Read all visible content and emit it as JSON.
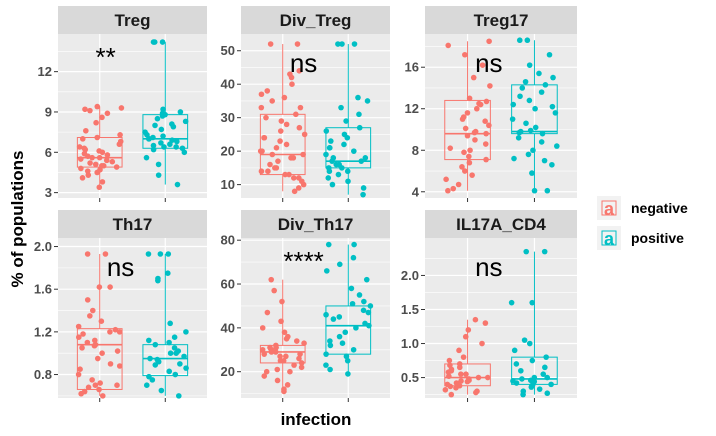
{
  "chart_data": {
    "type": "box",
    "xlabel": "infection",
    "ylabel": "% of populations",
    "legend": {
      "position": "right",
      "entries": [
        {
          "name": "negative",
          "color": "#F8766D"
        },
        {
          "name": "positive",
          "color": "#00BFC4"
        }
      ],
      "key_glyph": "a"
    },
    "groups": [
      "negative",
      "positive"
    ],
    "colors": {
      "negative": "#F8766D",
      "positive": "#00BFC4",
      "panel_bg": "#EBEBEB",
      "strip_bg": "#D9D9D9",
      "grid": "#FFFFFF"
    },
    "grid": true,
    "panels": [
      {
        "title": "Treg",
        "significance": "**",
        "ylim": [
          2.6,
          14.8
        ],
        "ticks": [
          3,
          6,
          9,
          12
        ],
        "boxes": {
          "negative": {
            "min": 3.4,
            "q1": 4.9,
            "median": 5.6,
            "q3": 7.1,
            "max": 9.4
          },
          "positive": {
            "min": 3.6,
            "q1": 6.3,
            "median": 7.0,
            "q3": 8.8,
            "max": 14.2
          }
        },
        "points": {
          "negative": [
            3.4,
            3.8,
            4.1,
            4.3,
            4.5,
            4.7,
            4.8,
            4.9,
            5.0,
            5.1,
            5.2,
            5.3,
            5.4,
            5.5,
            5.6,
            5.7,
            5.8,
            5.9,
            6.0,
            6.1,
            6.2,
            6.4,
            6.6,
            6.8,
            7.0,
            7.1,
            7.3,
            7.6,
            8.2,
            8.6,
            8.9,
            9.1,
            9.2,
            9.3,
            9.4,
            4.6,
            5.0,
            5.6,
            6.3
          ],
          "positive": [
            3.6,
            4.3,
            5.1,
            5.6,
            6.0,
            6.2,
            6.3,
            6.4,
            6.5,
            6.6,
            6.7,
            6.8,
            6.9,
            7.0,
            7.1,
            7.2,
            7.3,
            7.5,
            7.7,
            7.9,
            8.1,
            8.3,
            8.5,
            8.7,
            8.8,
            8.9,
            9.0,
            9.2,
            14.2,
            14.2,
            14.2,
            6.4,
            7.0,
            8.0
          ]
        }
      },
      {
        "title": "Div_Treg",
        "significance": "ns",
        "ylim": [
          6,
          55
        ],
        "ticks": [
          10,
          20,
          30,
          40,
          50
        ],
        "boxes": {
          "negative": {
            "min": 8,
            "q1": 13,
            "median": 19,
            "q3": 31,
            "max": 52
          },
          "positive": {
            "min": 7,
            "q1": 15,
            "median": 17,
            "q3": 27,
            "max": 52
          }
        },
        "points": {
          "negative": [
            8,
            9,
            10,
            11,
            12,
            12,
            13,
            13,
            14,
            15,
            15,
            16,
            17,
            18,
            18,
            19,
            19,
            20,
            21,
            22,
            23,
            24,
            25,
            26,
            27,
            28,
            29,
            30,
            31,
            33,
            35,
            37,
            38,
            40,
            42,
            43,
            44,
            52,
            52,
            14,
            20,
            24,
            33,
            36
          ],
          "positive": [
            7,
            9,
            10,
            11,
            12,
            13,
            14,
            15,
            15,
            16,
            16,
            17,
            17,
            18,
            19,
            20,
            21,
            22,
            23,
            24,
            25,
            26,
            27,
            29,
            31,
            33,
            35,
            36,
            52,
            52,
            52,
            14,
            18,
            21
          ]
        }
      },
      {
        "title": "Treg17",
        "significance": "ns",
        "ylim": [
          3.4,
          19.2
        ],
        "ticks": [
          4,
          8,
          12,
          16
        ],
        "boxes": {
          "negative": {
            "min": 4.1,
            "q1": 7.1,
            "median": 9.6,
            "q3": 12.8,
            "max": 18.5
          },
          "positive": {
            "min": 4.1,
            "q1": 9.6,
            "median": 9.8,
            "q3": 14.3,
            "max": 18.6
          }
        },
        "points": {
          "negative": [
            4.1,
            4.3,
            4.7,
            5.2,
            5.6,
            6.0,
            6.4,
            6.8,
            7.1,
            7.4,
            7.8,
            8.2,
            8.6,
            9.0,
            9.4,
            9.6,
            9.8,
            10.1,
            10.4,
            10.8,
            11.2,
            11.6,
            12.0,
            12.4,
            12.7,
            13.0,
            14.2,
            15.0,
            16.2,
            17.2,
            18.1,
            18.5,
            8.0,
            9.7,
            11.0,
            12.5
          ],
          "positive": [
            4.1,
            4.1,
            5.8,
            6.6,
            7.0,
            7.2,
            7.6,
            8.0,
            8.4,
            8.8,
            9.2,
            9.6,
            9.7,
            9.8,
            10.2,
            10.6,
            11.0,
            11.6,
            12.0,
            12.4,
            12.8,
            13.2,
            13.6,
            14.0,
            14.3,
            14.6,
            15.0,
            15.4,
            16.2,
            17.2,
            18.6,
            18.6,
            9.9,
            12.2
          ]
        }
      },
      {
        "title": "Th17",
        "significance": "ns",
        "ylim": [
          0.58,
          2.08
        ],
        "ticks": [
          0.8,
          1.2,
          1.6,
          2.0
        ],
        "boxes": {
          "negative": {
            "min": 0.6,
            "q1": 0.66,
            "median": 1.08,
            "q3": 1.23,
            "max": 1.93
          },
          "positive": {
            "min": 0.6,
            "q1": 0.79,
            "median": 0.95,
            "q3": 1.08,
            "max": 1.93
          }
        },
        "points": {
          "negative": [
            0.6,
            0.62,
            0.64,
            0.66,
            0.68,
            0.7,
            0.72,
            0.75,
            0.8,
            0.85,
            0.9,
            0.95,
            1.0,
            1.02,
            1.05,
            1.08,
            1.1,
            1.12,
            1.15,
            1.18,
            1.2,
            1.22,
            1.25,
            1.3,
            1.35,
            1.4,
            1.5,
            1.62,
            1.62,
            1.93,
            1.93,
            0.7,
            0.88,
            1.07,
            1.2
          ],
          "positive": [
            0.6,
            0.65,
            0.7,
            0.75,
            0.78,
            0.8,
            0.83,
            0.86,
            0.89,
            0.92,
            0.94,
            0.95,
            0.97,
            1.0,
            1.02,
            1.05,
            1.08,
            1.1,
            1.12,
            1.15,
            1.2,
            1.28,
            1.68,
            1.7,
            1.75,
            1.93,
            1.93,
            1.93,
            0.9,
            1.0
          ]
        }
      },
      {
        "title": "Div_Th17",
        "significance": "****",
        "ylim": [
          8,
          81
        ],
        "ticks": [
          20,
          40,
          60,
          80
        ],
        "boxes": {
          "negative": {
            "min": 11,
            "q1": 24,
            "median": 29,
            "q3": 32,
            "max": 62
          },
          "positive": {
            "min": 19,
            "q1": 28,
            "median": 41,
            "q3": 50,
            "max": 78
          }
        },
        "points": {
          "negative": [
            11,
            12,
            14,
            16,
            18,
            20,
            21,
            22,
            23,
            24,
            25,
            26,
            27,
            28,
            28,
            29,
            29,
            30,
            30,
            31,
            32,
            33,
            34,
            36,
            38,
            40,
            43,
            47,
            52,
            57,
            62,
            25,
            27,
            31,
            35,
            20
          ],
          "positive": [
            19,
            21,
            23,
            25,
            27,
            28,
            30,
            32,
            34,
            36,
            38,
            40,
            41,
            42,
            44,
            46,
            48,
            50,
            52,
            55,
            58,
            62,
            66,
            69,
            72,
            78,
            78,
            33,
            45,
            47,
            51
          ]
        }
      },
      {
        "title": "IL17A_CD4",
        "significance": "ns",
        "ylim": [
          0.2,
          2.55
        ],
        "ticks": [
          0.5,
          1.0,
          1.5,
          2.0
        ],
        "boxes": {
          "negative": {
            "min": 0.25,
            "q1": 0.38,
            "median": 0.5,
            "q3": 0.7,
            "max": 1.35
          },
          "positive": {
            "min": 0.25,
            "q1": 0.4,
            "median": 0.48,
            "q3": 0.8,
            "max": 2.35
          }
        },
        "points": {
          "negative": [
            0.25,
            0.28,
            0.3,
            0.32,
            0.35,
            0.37,
            0.38,
            0.4,
            0.42,
            0.44,
            0.46,
            0.48,
            0.5,
            0.52,
            0.55,
            0.58,
            0.6,
            0.62,
            0.65,
            0.68,
            0.7,
            0.75,
            0.8,
            0.9,
            1.0,
            1.1,
            1.2,
            1.3,
            1.35,
            0.45,
            0.5,
            0.55
          ],
          "positive": [
            0.25,
            0.27,
            0.3,
            0.33,
            0.36,
            0.39,
            0.4,
            0.42,
            0.44,
            0.46,
            0.48,
            0.5,
            0.55,
            0.6,
            0.65,
            0.7,
            0.75,
            0.8,
            0.9,
            1.0,
            1.05,
            1.6,
            1.6,
            2.35,
            2.35,
            0.45,
            0.5,
            0.38
          ]
        }
      }
    ]
  }
}
